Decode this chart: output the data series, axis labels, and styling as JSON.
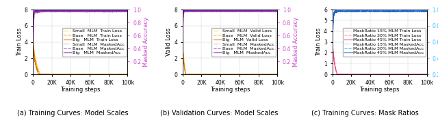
{
  "fig_width": 6.4,
  "fig_height": 1.76,
  "dpi": 100,
  "subtitles": [
    "(a) Training Curves: Model Scales",
    "(b) Validation Curves: Model Scales",
    "(c) Training Curves: Mask Ratios"
  ],
  "x_ticks": [
    0,
    20000,
    40000,
    60000,
    80000,
    100000
  ],
  "x_tick_labels": [
    "0",
    "20K",
    "40K",
    "60K",
    "80K",
    "100k"
  ],
  "x_label": "Training steps",
  "panel_a": {
    "ylabel_left": "Train Loss",
    "ylabel_right": "Masked Accuracy",
    "ylim_left": [
      0,
      8
    ],
    "ylim_right": [
      0.0,
      1.0
    ],
    "yticks_left": [
      0,
      2,
      4,
      6,
      8
    ],
    "yticks_right": [
      0.2,
      0.4,
      0.6,
      0.8,
      1.0
    ],
    "right_tick_color": "#CC44CC"
  },
  "panel_b": {
    "ylabel_left": "Valid Loss",
    "ylabel_right": "Masked Accuracy",
    "ylim_left": [
      0,
      8
    ],
    "ylim_right": [
      0.0,
      1.0
    ],
    "yticks_left": [
      0,
      2,
      4,
      6,
      8
    ],
    "yticks_right": [
      0.2,
      0.4,
      0.6,
      0.8,
      1.0
    ],
    "right_tick_color": "#CC44CC"
  },
  "panel_c": {
    "ylabel_left": "Train Loss",
    "ylabel_right": "Masked Accuracy",
    "ylim_left": [
      0,
      6
    ],
    "ylim_right": [
      0.2,
      1.0
    ],
    "yticks_left": [
      0,
      1,
      2,
      3,
      4,
      5,
      6
    ],
    "yticks_right": [
      0.2,
      0.4,
      0.6,
      0.8,
      1.0
    ],
    "right_tick_color": "#44BBFF"
  },
  "orange_colors": [
    "#FFD070",
    "#FFA500",
    "#CC7700"
  ],
  "purple_colors": [
    "#DDAADD",
    "#BB66BB",
    "#7722AA"
  ],
  "pink_colors": [
    "#FFBBCC",
    "#FF8888",
    "#FF4477"
  ],
  "blue_colors": [
    "#AADDFF",
    "#55BBEE",
    "#2266CC"
  ],
  "subtitle_fontsize": 7.0,
  "axis_label_fontsize": 6.0,
  "tick_fontsize": 5.5,
  "legend_fontsize": 4.6
}
